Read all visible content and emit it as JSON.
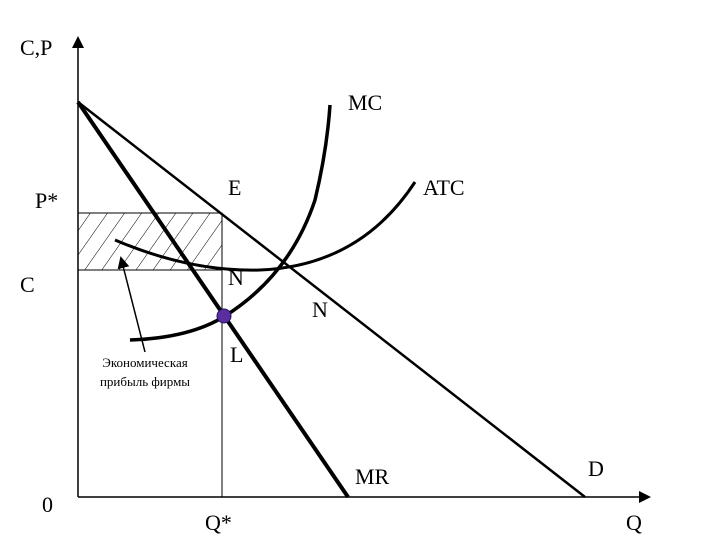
{
  "axes": {
    "y_label": "C,P",
    "x_label": "Q",
    "origin": "0"
  },
  "curves": {
    "mc": "MC",
    "atc": "ATC",
    "mr": "MR",
    "demand": "D"
  },
  "points": {
    "e": "E",
    "n1": "N",
    "n2": "N",
    "l": "L"
  },
  "levels": {
    "price": "P*",
    "cost": "C",
    "quantity": "Q*"
  },
  "annotation": {
    "line1": "Экономическая",
    "line2": "прибыль фирмы"
  }
}
